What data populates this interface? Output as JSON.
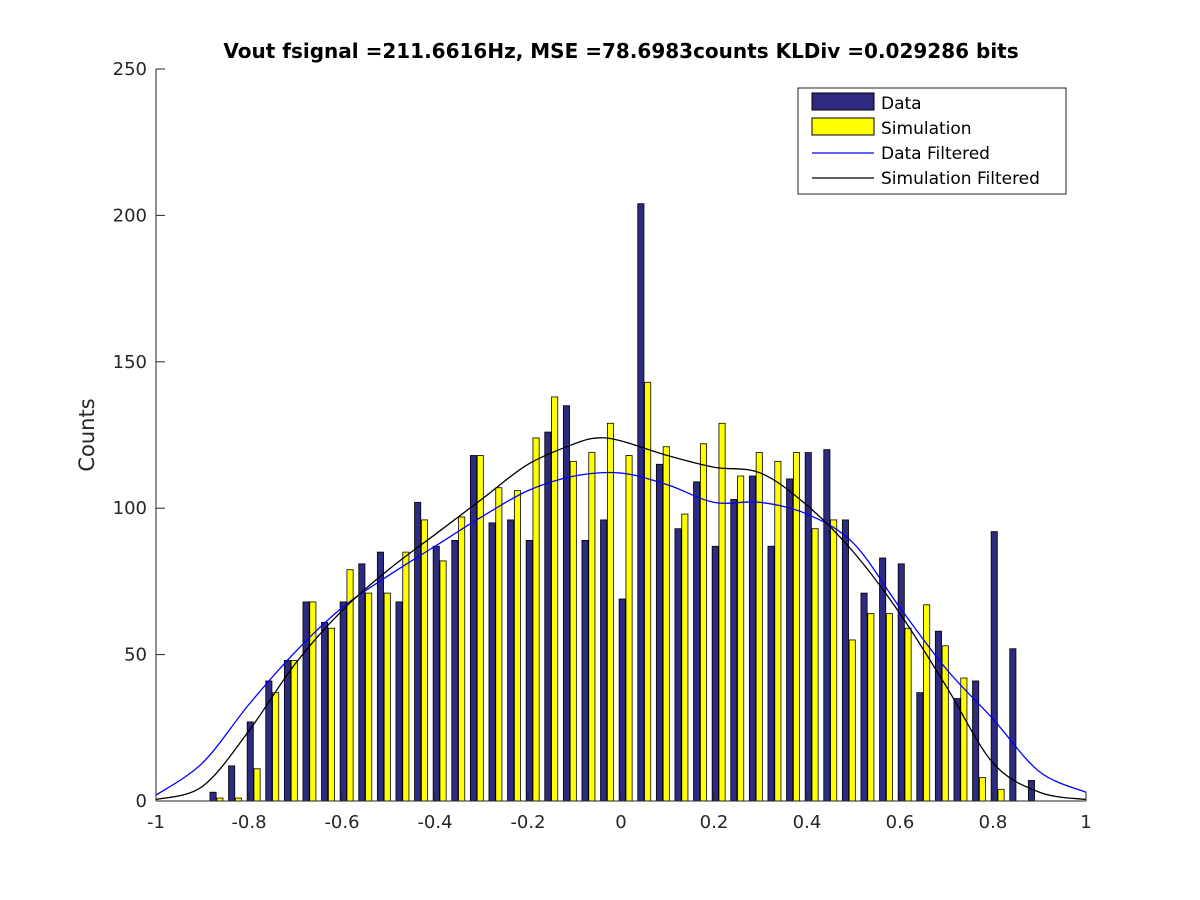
{
  "chart_data": {
    "type": "bar",
    "title": "Vout fsignal =211.6616Hz, MSE =78.6983counts KLDiv =0.029286 bits",
    "xlabel": "",
    "ylabel": "Counts",
    "xlim": [
      -1,
      1
    ],
    "ylim": [
      0,
      250
    ],
    "x_ticks": [
      -1,
      -0.8,
      -0.6,
      -0.4,
      -0.2,
      0,
      0.2,
      0.4,
      0.6,
      0.8,
      1
    ],
    "x_tick_labels": [
      "-1",
      "-0.8",
      "-0.6",
      "-0.4",
      "-0.2",
      "0",
      "0.2",
      "0.4",
      "0.6",
      "0.8",
      "1"
    ],
    "y_ticks": [
      0,
      50,
      100,
      150,
      200,
      250
    ],
    "y_tick_labels": [
      "0",
      "50",
      "100",
      "150",
      "200",
      "250"
    ],
    "grid": false,
    "legend_position": "top-right",
    "colors": {
      "data": "#2e2a7f",
      "simulation": "#ffff00",
      "data_filtered": "#0000ff",
      "simulation_filtered": "#000000"
    },
    "bin_centers": [
      -0.87,
      -0.83,
      -0.79,
      -0.75,
      -0.71,
      -0.67,
      -0.63,
      -0.59,
      -0.55,
      -0.51,
      -0.47,
      -0.43,
      -0.39,
      -0.35,
      -0.31,
      -0.27,
      -0.23,
      -0.19,
      -0.15,
      -0.11,
      -0.07,
      -0.03,
      0.01,
      0.05,
      0.09,
      0.13,
      0.17,
      0.21,
      0.25,
      0.29,
      0.33,
      0.37,
      0.41,
      0.45,
      0.49,
      0.53,
      0.57,
      0.61,
      0.65,
      0.69,
      0.73,
      0.77,
      0.81,
      0.85,
      0.89
    ],
    "series": [
      {
        "name": "Data",
        "kind": "bar",
        "values": [
          3,
          12,
          27,
          41,
          48,
          68,
          61,
          68,
          81,
          85,
          68,
          102,
          87,
          89,
          118,
          95,
          96,
          89,
          126,
          135,
          89,
          96,
          69,
          204,
          115,
          93,
          109,
          87,
          103,
          111,
          87,
          110,
          119,
          120,
          96,
          71,
          83,
          81,
          37,
          58,
          35,
          41,
          92,
          52,
          7
        ]
      },
      {
        "name": "Simulation",
        "kind": "bar",
        "values": [
          1,
          1,
          11,
          37,
          48,
          68,
          59,
          79,
          71,
          71,
          85,
          96,
          82,
          97,
          118,
          107,
          106,
          124,
          138,
          116,
          119,
          129,
          118,
          143,
          121,
          98,
          122,
          129,
          111,
          119,
          116,
          119,
          93,
          96,
          55,
          64,
          64,
          59,
          67,
          53,
          42,
          8,
          4,
          0,
          0
        ]
      },
      {
        "name": "Data Filtered",
        "kind": "line",
        "x": [
          -1,
          -0.9,
          -0.8,
          -0.7,
          -0.6,
          -0.5,
          -0.4,
          -0.3,
          -0.2,
          -0.1,
          0,
          0.1,
          0.2,
          0.3,
          0.4,
          0.5,
          0.6,
          0.7,
          0.8,
          0.9,
          1
        ],
        "y": [
          2,
          13,
          33,
          51,
          66,
          77,
          87,
          97,
          106,
          111,
          112,
          108,
          102,
          102,
          98,
          88,
          66,
          45,
          28,
          10,
          3
        ]
      },
      {
        "name": "Simulation Filtered",
        "kind": "line",
        "x": [
          -1,
          -0.9,
          -0.8,
          -0.7,
          -0.6,
          -0.5,
          -0.4,
          -0.3,
          -0.2,
          -0.1,
          -0.05,
          0,
          0.1,
          0.2,
          0.3,
          0.4,
          0.5,
          0.6,
          0.7,
          0.8,
          0.9,
          1
        ],
        "y": [
          0.5,
          5,
          24,
          47,
          65,
          79,
          91,
          103,
          115,
          122,
          124,
          123,
          118,
          114,
          112,
          101,
          85,
          64,
          39,
          13,
          3,
          0.5
        ]
      }
    ]
  }
}
